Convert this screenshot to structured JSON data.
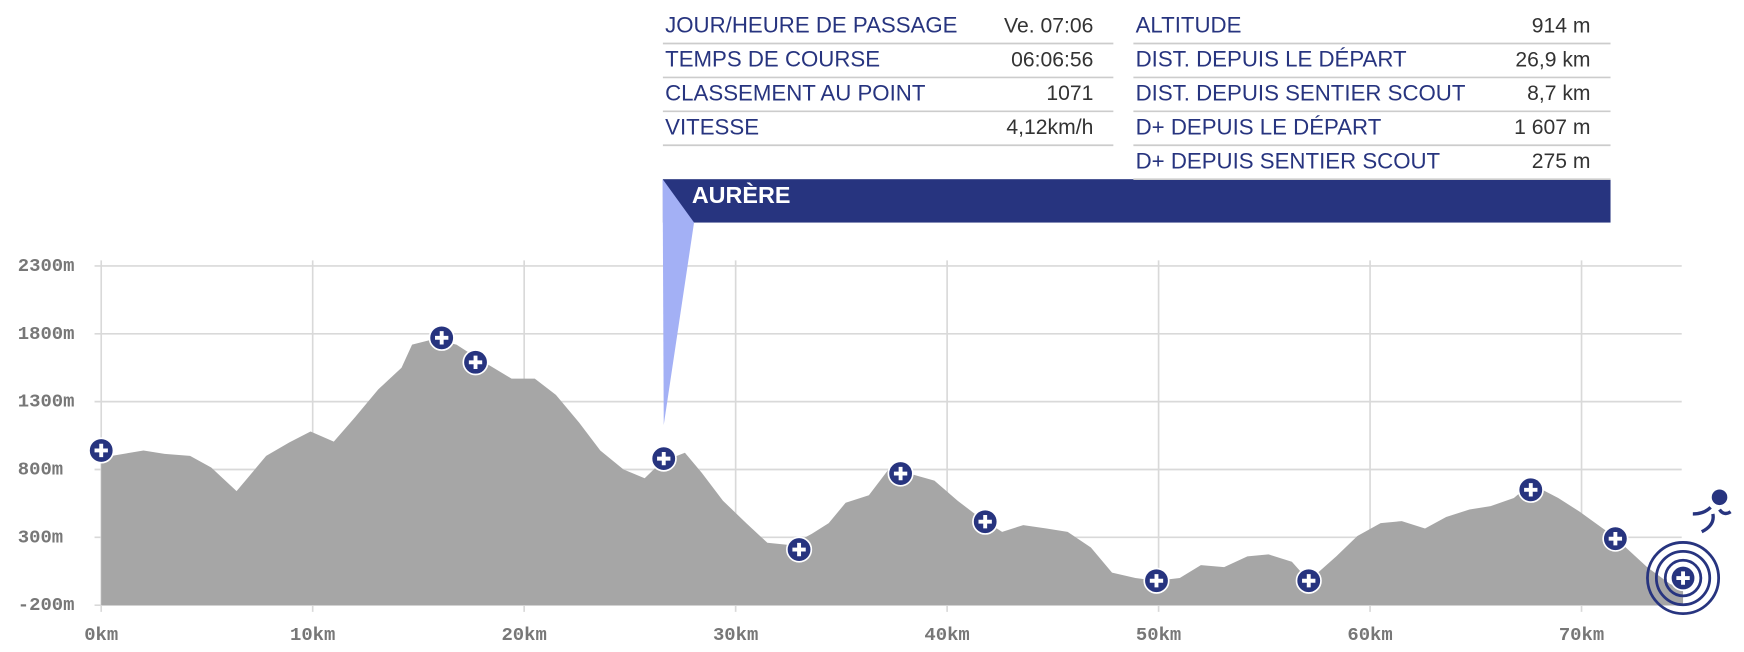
{
  "info": {
    "left": [
      {
        "label": "JOUR/HEURE DE PASSAGE",
        "value": "Ve. 07:06"
      },
      {
        "label": "TEMPS DE COURSE",
        "value": "06:06:56"
      },
      {
        "label": "CLASSEMENT AU POINT",
        "value": "1071"
      },
      {
        "label": "VITESSE",
        "value": "4,12km/h"
      }
    ],
    "right": [
      {
        "label": "ALTITUDE",
        "value": "914 m"
      },
      {
        "label": "DIST. DEPUIS LE DÉPART",
        "value": "26,9 km"
      },
      {
        "label": "DIST. DEPUIS SENTIER SCOUT",
        "value": "8,7 km"
      },
      {
        "label": "D+ DEPUIS LE DÉPART",
        "value": "1 607 m"
      },
      {
        "label": "D+ DEPUIS SENTIER SCOUT",
        "value": "275 m"
      }
    ]
  },
  "chart_data": {
    "type": "area",
    "annotation": {
      "text": "AURÈRE",
      "x": 26.6
    },
    "x": [
      0,
      0.5,
      2,
      3,
      4.2,
      5.2,
      6.4,
      7.8,
      8.9,
      9.9,
      11,
      12,
      13.1,
      14.2,
      14.7,
      15.7,
      16.8,
      17.8,
      19.4,
      20.5,
      21.5,
      22.6,
      23.6,
      24.7,
      25.7,
      26.5,
      27.6,
      28.4,
      29.4,
      30.5,
      31.5,
      32.6,
      33.6,
      34.4,
      35.2,
      36.3,
      37.3,
      38.1,
      39.4,
      40.5,
      41.5,
      42.6,
      43.6,
      44.7,
      45.7,
      46.8,
      47.8,
      48.9,
      49.9,
      51,
      52,
      53.1,
      54.2,
      55.2,
      56.3,
      57.1,
      58.4,
      59.4,
      60.5,
      61.5,
      62.6,
      63.6,
      64.7,
      65.7,
      66.8,
      67.6,
      68.9,
      69.9,
      71.5,
      73.1,
      74.2,
      74.8
    ],
    "values": [
      940,
      900,
      940,
      915,
      900,
      815,
      640,
      900,
      1000,
      1080,
      1005,
      1185,
      1390,
      1550,
      1720,
      1760,
      1720,
      1620,
      1470,
      1470,
      1350,
      1145,
      940,
      800,
      735,
      857,
      923,
      775,
      570,
      405,
      260,
      243,
      325,
      405,
      555,
      610,
      815,
      775,
      718,
      570,
      450,
      340,
      390,
      365,
      340,
      225,
      40,
      0,
      -20,
      0,
      95,
      80,
      160,
      175,
      120,
      -20,
      160,
      310,
      405,
      420,
      365,
      450,
      505,
      530,
      590,
      695,
      590,
      490,
      310,
      80,
      -45,
      -85
    ],
    "color": "#a6a6a6",
    "checkpoints": {
      "x": [
        0,
        16.1,
        17.7,
        26.6,
        33,
        37.8,
        41.8,
        49.9,
        57.1,
        67.6,
        71.6,
        74.8
      ],
      "values": [
        940,
        1770,
        1590,
        880,
        210,
        770,
        415,
        -20,
        -20,
        650,
        290,
        0
      ],
      "color": "#27347f"
    },
    "xlim": [
      0,
      75
    ],
    "ylim": [
      -200,
      2300
    ],
    "xticks": [
      {
        "value": 0,
        "label": "0km"
      },
      {
        "value": 10,
        "label": "10km"
      },
      {
        "value": 20,
        "label": "20km"
      },
      {
        "value": 30,
        "label": "30km"
      },
      {
        "value": 40,
        "label": "40km"
      },
      {
        "value": 50,
        "label": "50km"
      },
      {
        "value": 60,
        "label": "60km"
      },
      {
        "value": 70,
        "label": "70km"
      }
    ],
    "yticks": [
      {
        "value": -200,
        "label": "-200m"
      },
      {
        "value": 300,
        "label": "300m"
      },
      {
        "value": 800,
        "label": "800m"
      },
      {
        "value": 1300,
        "label": "1300m"
      },
      {
        "value": 1800,
        "label": "1800m"
      },
      {
        "value": 2300,
        "label": "2300m"
      }
    ],
    "grid": true
  }
}
